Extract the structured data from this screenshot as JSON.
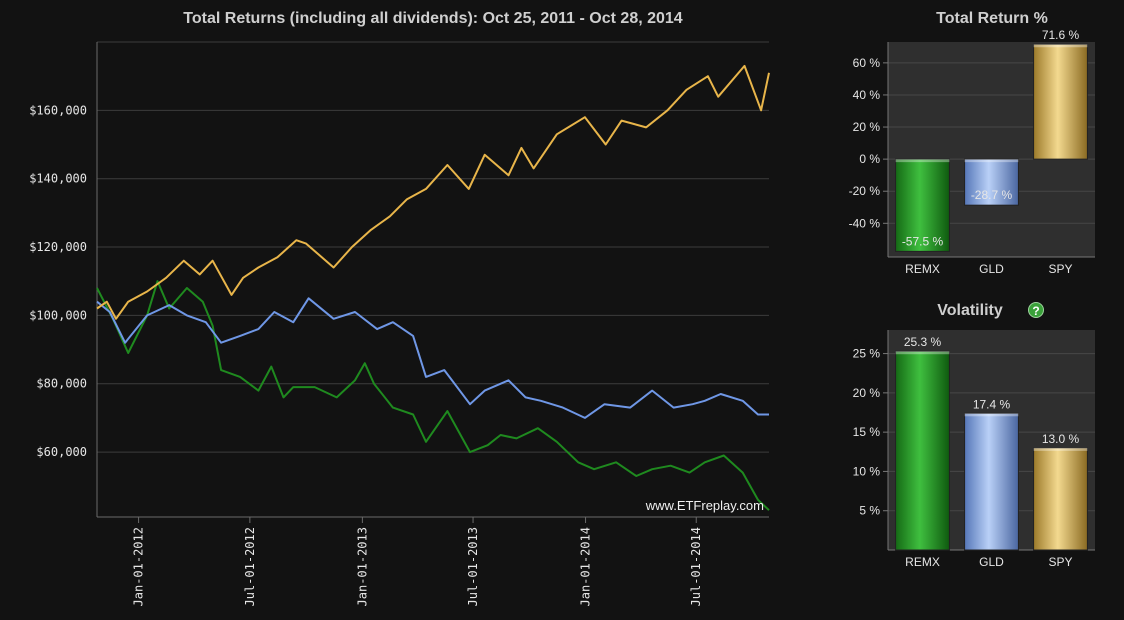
{
  "chart_data": [
    {
      "type": "line",
      "title": "Total Returns (including all dividends): Oct 25, 2011 - Oct 28, 2014",
      "watermark": "www.ETFreplay.com",
      "x_ticks": [
        "Jan-01-2012",
        "Jul-01-2012",
        "Jan-01-2013",
        "Jul-01-2013",
        "Jan-01-2014",
        "Jul-01-2014"
      ],
      "y_ticks": [
        "$60,000",
        "$80,000",
        "$100,000",
        "$120,000",
        "$140,000",
        "$160,000"
      ],
      "y_tick_values": [
        60000,
        80000,
        100000,
        120000,
        140000,
        160000
      ],
      "xlim": [
        "2011-10-25",
        "2014-10-28"
      ],
      "ylim": [
        41000,
        180000
      ],
      "grid": true,
      "series": [
        {
          "color": "#e8b54a",
          "x": [
            "2011-10-25",
            "2011-11-10",
            "2011-11-25",
            "2011-12-15",
            "2012-01-15",
            "2012-02-15",
            "2012-03-15",
            "2012-04-10",
            "2012-05-01",
            "2012-06-01",
            "2012-06-20",
            "2012-07-15",
            "2012-08-15",
            "2012-09-15",
            "2012-10-01",
            "2012-11-15",
            "2012-12-15",
            "2013-01-15",
            "2013-02-15",
            "2013-03-15",
            "2013-04-15",
            "2013-05-20",
            "2013-06-24",
            "2013-07-20",
            "2013-08-28",
            "2013-09-18",
            "2013-10-08",
            "2013-11-15",
            "2013-12-31",
            "2014-02-03",
            "2014-03-01",
            "2014-04-10",
            "2014-05-15",
            "2014-06-15",
            "2014-07-20",
            "2014-08-06",
            "2014-09-18",
            "2014-10-15",
            "2014-10-28"
          ],
          "y": [
            102000,
            104000,
            99000,
            104000,
            107000,
            111000,
            116000,
            112000,
            116000,
            106000,
            111000,
            114000,
            117000,
            122000,
            121000,
            114000,
            120000,
            125000,
            129000,
            134000,
            137000,
            144000,
            137000,
            147000,
            141000,
            149000,
            143000,
            153000,
            158000,
            150000,
            157000,
            155000,
            160000,
            166000,
            170000,
            164000,
            173000,
            160000,
            171000
          ]
        },
        {
          "color": "#6f97e6",
          "x": [
            "2011-10-25",
            "2011-11-15",
            "2011-12-10",
            "2012-01-15",
            "2012-02-20",
            "2012-03-20",
            "2012-04-20",
            "2012-05-15",
            "2012-06-15",
            "2012-07-15",
            "2012-08-10",
            "2012-09-10",
            "2012-10-05",
            "2012-11-15",
            "2012-12-20",
            "2013-01-25",
            "2013-02-20",
            "2013-03-25",
            "2013-04-15",
            "2013-05-15",
            "2013-06-26",
            "2013-07-20",
            "2013-08-28",
            "2013-09-25",
            "2013-10-20",
            "2013-11-25",
            "2013-12-31",
            "2014-02-01",
            "2014-03-15",
            "2014-04-20",
            "2014-05-25",
            "2014-06-25",
            "2014-07-15",
            "2014-08-10",
            "2014-09-15",
            "2014-10-10",
            "2014-10-28"
          ],
          "y": [
            104000,
            101000,
            92000,
            100000,
            103000,
            100000,
            98000,
            92000,
            94000,
            96000,
            101000,
            98000,
            105000,
            99000,
            101000,
            96000,
            98000,
            94000,
            82000,
            84000,
            74000,
            78000,
            81000,
            76000,
            75000,
            73000,
            70000,
            74000,
            73000,
            78000,
            73000,
            74000,
            75000,
            77000,
            75000,
            71000,
            71000
          ]
        },
        {
          "color": "#1f8a1f",
          "x": [
            "2011-10-25",
            "2011-11-20",
            "2011-12-15",
            "2012-01-15",
            "2012-02-01",
            "2012-02-20",
            "2012-03-20",
            "2012-04-15",
            "2012-05-01",
            "2012-05-15",
            "2012-06-15",
            "2012-07-15",
            "2012-08-05",
            "2012-08-25",
            "2012-09-10",
            "2012-10-15",
            "2012-11-20",
            "2012-12-20",
            "2013-01-05",
            "2013-01-20",
            "2013-02-20",
            "2013-03-25",
            "2013-04-15",
            "2013-05-20",
            "2013-06-26",
            "2013-07-25",
            "2013-08-15",
            "2013-09-10",
            "2013-10-15",
            "2013-11-15",
            "2013-12-20",
            "2014-01-15",
            "2014-02-20",
            "2014-03-25",
            "2014-04-20",
            "2014-05-20",
            "2014-06-20",
            "2014-07-15",
            "2014-08-15",
            "2014-09-15",
            "2014-10-10",
            "2014-10-28"
          ],
          "y": [
            108000,
            99000,
            89000,
            100000,
            110000,
            102000,
            108000,
            104000,
            97000,
            84000,
            82000,
            78000,
            85000,
            76000,
            79000,
            79000,
            76000,
            81000,
            86000,
            80000,
            73000,
            71000,
            63000,
            72000,
            60000,
            62000,
            65000,
            64000,
            67000,
            63000,
            57000,
            55000,
            57000,
            53000,
            55000,
            56000,
            54000,
            57000,
            59000,
            54000,
            46000,
            43000
          ]
        }
      ]
    },
    {
      "type": "bar",
      "title": "Total Return %",
      "categories": [
        "REMX",
        "GLD",
        "SPY"
      ],
      "values": [
        -57.5,
        -28.7,
        71.6
      ],
      "value_labels": [
        "-57.5 %",
        "-28.7 %",
        "71.6 %"
      ],
      "colors": [
        "#2e9e2e",
        "#8fb3ec",
        "#e8c46a"
      ],
      "y_ticks": [
        "60 %",
        "40 %",
        "20 %",
        "0 %",
        "-20 %",
        "-40 %"
      ],
      "y_tick_values": [
        60,
        40,
        20,
        0,
        -20,
        -40
      ],
      "ylim": [
        -61,
        73
      ],
      "grid": true
    },
    {
      "type": "bar",
      "title": "Volatility",
      "title_icon": "help-icon",
      "categories": [
        "REMX",
        "GLD",
        "SPY"
      ],
      "values": [
        25.3,
        17.4,
        13.0
      ],
      "value_labels": [
        "25.3 %",
        "17.4 %",
        "13.0 %"
      ],
      "colors": [
        "#2e9e2e",
        "#8fb3ec",
        "#e8c46a"
      ],
      "y_ticks": [
        "25 %",
        "20 %",
        "15 %",
        "10 %",
        "5 %"
      ],
      "y_tick_values": [
        25,
        20,
        15,
        10,
        5
      ],
      "ylim": [
        0,
        28
      ],
      "grid": true
    }
  ]
}
